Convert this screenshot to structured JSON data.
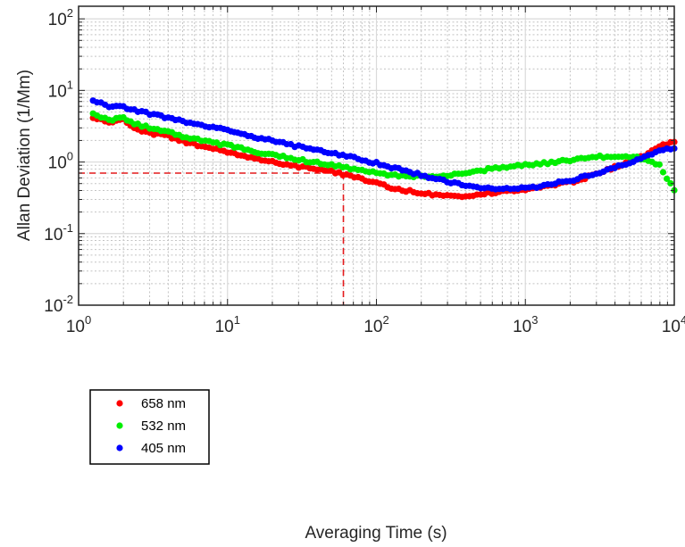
{
  "chart_data": {
    "type": "scatter",
    "title": "",
    "xlabel": "Averaging Time  (s)",
    "ylabel": "Allan Deviation (1/Mm)",
    "xscale": "log",
    "yscale": "log",
    "xlim": [
      1,
      10000
    ],
    "ylim": [
      0.01,
      150
    ],
    "xticks": [
      {
        "base": "10",
        "exp": "0"
      },
      {
        "base": "10",
        "exp": "1"
      },
      {
        "base": "10",
        "exp": "2"
      },
      {
        "base": "10",
        "exp": "3"
      },
      {
        "base": "10",
        "exp": "4"
      }
    ],
    "yticks": [
      {
        "base": "10",
        "exp": "-2"
      },
      {
        "base": "10",
        "exp": "-1"
      },
      {
        "base": "10",
        "exp": "0"
      },
      {
        "base": "10",
        "exp": "1"
      },
      {
        "base": "10",
        "exp": "2"
      }
    ],
    "grid": true,
    "legend_position": "bottom-left",
    "reference_lines": {
      "color": "#e41a1c",
      "style": "dashed",
      "x": 60,
      "y": 0.7
    },
    "series": [
      {
        "name": "658 nm",
        "color": "#ff0000",
        "points": [
          [
            1.25,
            4.3
          ],
          [
            1.6,
            3.5
          ],
          [
            2.0,
            3.9
          ],
          [
            2.5,
            2.8
          ],
          [
            3.2,
            2.5
          ],
          [
            4.0,
            2.3
          ],
          [
            5.0,
            1.95
          ],
          [
            6.3,
            1.72
          ],
          [
            8.0,
            1.52
          ],
          [
            10,
            1.38
          ],
          [
            13,
            1.22
          ],
          [
            16,
            1.1
          ],
          [
            20,
            1.0
          ],
          [
            25,
            0.92
          ],
          [
            32,
            0.85
          ],
          [
            40,
            0.79
          ],
          [
            50,
            0.73
          ],
          [
            63,
            0.66
          ],
          [
            80,
            0.58
          ],
          [
            100,
            0.5
          ],
          [
            126,
            0.44
          ],
          [
            158,
            0.4
          ],
          [
            200,
            0.37
          ],
          [
            251,
            0.34
          ],
          [
            316,
            0.33
          ],
          [
            398,
            0.33
          ],
          [
            501,
            0.35
          ],
          [
            631,
            0.38
          ],
          [
            794,
            0.4
          ],
          [
            1000,
            0.42
          ],
          [
            1259,
            0.44
          ],
          [
            1585,
            0.48
          ],
          [
            1995,
            0.52
          ],
          [
            2512,
            0.6
          ],
          [
            3162,
            0.72
          ],
          [
            3981,
            0.85
          ],
          [
            5012,
            1.0
          ],
          [
            6310,
            1.25
          ],
          [
            7943,
            1.65
          ],
          [
            10000,
            1.9
          ],
          [
            11220,
            1.9
          ]
        ]
      },
      {
        "name": "532 nm",
        "color": "#00ee00",
        "points": [
          [
            1.25,
            4.6
          ],
          [
            1.6,
            3.8
          ],
          [
            2.0,
            4.2
          ],
          [
            2.5,
            3.3
          ],
          [
            3.2,
            2.9
          ],
          [
            4.0,
            2.6
          ],
          [
            5.0,
            2.25
          ],
          [
            6.3,
            2.05
          ],
          [
            8.0,
            1.85
          ],
          [
            10,
            1.7
          ],
          [
            13,
            1.52
          ],
          [
            16,
            1.38
          ],
          [
            20,
            1.26
          ],
          [
            25,
            1.15
          ],
          [
            32,
            1.05
          ],
          [
            40,
            0.97
          ],
          [
            50,
            0.9
          ],
          [
            63,
            0.83
          ],
          [
            80,
            0.75
          ],
          [
            100,
            0.7
          ],
          [
            126,
            0.66
          ],
          [
            158,
            0.64
          ],
          [
            200,
            0.64
          ],
          [
            251,
            0.64
          ],
          [
            316,
            0.66
          ],
          [
            398,
            0.7
          ],
          [
            501,
            0.76
          ],
          [
            631,
            0.82
          ],
          [
            794,
            0.86
          ],
          [
            1000,
            0.9
          ],
          [
            1259,
            0.95
          ],
          [
            1585,
            1.0
          ],
          [
            1995,
            1.05
          ],
          [
            2512,
            1.12
          ],
          [
            3162,
            1.18
          ],
          [
            3981,
            1.22
          ],
          [
            5012,
            1.2
          ],
          [
            6310,
            1.1
          ],
          [
            7943,
            0.9
          ],
          [
            8913,
            0.6
          ],
          [
            10000,
            0.4
          ],
          [
            11220,
            0.22
          ]
        ]
      },
      {
        "name": "405 nm",
        "color": "#0000ff",
        "points": [
          [
            1.25,
            7.2
          ],
          [
            1.6,
            5.9
          ],
          [
            2.0,
            5.8
          ],
          [
            2.5,
            5.1
          ],
          [
            3.2,
            4.6
          ],
          [
            4.0,
            4.1
          ],
          [
            5.0,
            3.7
          ],
          [
            6.3,
            3.35
          ],
          [
            8.0,
            3.05
          ],
          [
            10,
            2.75
          ],
          [
            13,
            2.45
          ],
          [
            16,
            2.2
          ],
          [
            20,
            1.98
          ],
          [
            25,
            1.78
          ],
          [
            32,
            1.6
          ],
          [
            40,
            1.45
          ],
          [
            50,
            1.32
          ],
          [
            63,
            1.2
          ],
          [
            80,
            1.08
          ],
          [
            100,
            0.96
          ],
          [
            126,
            0.85
          ],
          [
            158,
            0.75
          ],
          [
            200,
            0.66
          ],
          [
            251,
            0.58
          ],
          [
            316,
            0.52
          ],
          [
            398,
            0.48
          ],
          [
            501,
            0.44
          ],
          [
            631,
            0.42
          ],
          [
            794,
            0.42
          ],
          [
            1000,
            0.43
          ],
          [
            1259,
            0.46
          ],
          [
            1585,
            0.5
          ],
          [
            1995,
            0.55
          ],
          [
            2512,
            0.62
          ],
          [
            3162,
            0.72
          ],
          [
            3981,
            0.85
          ],
          [
            5012,
            0.98
          ],
          [
            6310,
            1.15
          ],
          [
            7943,
            1.4
          ],
          [
            10000,
            1.6
          ],
          [
            11220,
            1.6
          ]
        ]
      }
    ]
  }
}
